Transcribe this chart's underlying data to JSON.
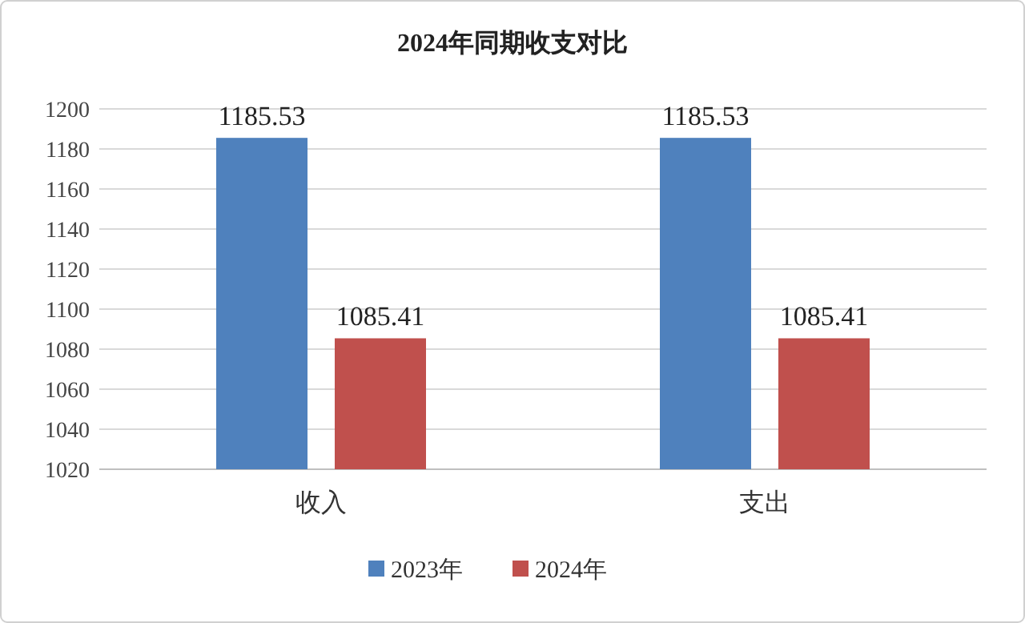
{
  "chart_data": {
    "type": "bar",
    "title": "2024年同期收支对比",
    "categories": [
      "收入",
      "支出"
    ],
    "series": [
      {
        "name": "2023年",
        "color": "#4f81bd",
        "values": [
          1185.53,
          1185.53
        ]
      },
      {
        "name": "2024年",
        "color": "#c0504d",
        "values": [
          1085.41,
          1085.41
        ]
      }
    ],
    "ylim": [
      1020,
      1200
    ],
    "yticks": [
      1020,
      1040,
      1060,
      1080,
      1100,
      1120,
      1140,
      1160,
      1180,
      1200
    ],
    "grid": "y",
    "legend": "bottom",
    "data_labels": true
  }
}
